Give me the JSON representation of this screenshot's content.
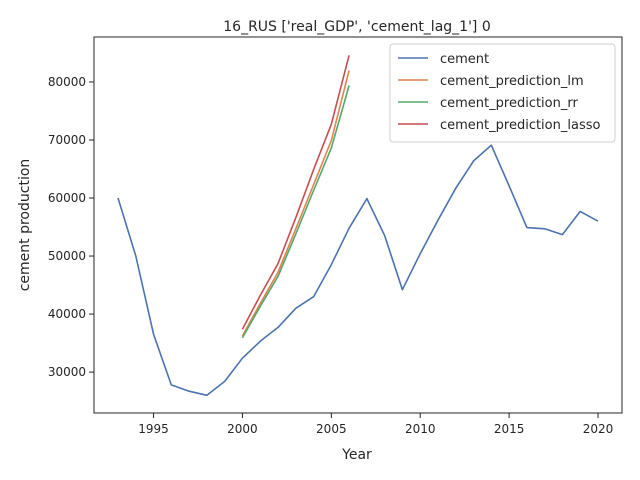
{
  "chart_data": {
    "type": "line",
    "title": "16_RUS ['real_GDP', 'cement_lag_1'] 0",
    "xlabel": "Year",
    "ylabel": "cement production",
    "xlim": [
      1991.65,
      2021.35
    ],
    "ylim": [
      22950,
      87750
    ],
    "xticks": [
      1995,
      2000,
      2005,
      2010,
      2015,
      2020
    ],
    "yticks": [
      30000,
      40000,
      50000,
      60000,
      70000,
      80000
    ],
    "grid": false,
    "legend_position": "top-right",
    "series": [
      {
        "name": "cement",
        "color": "#4c72b0",
        "x": [
          1993,
          1994,
          1995,
          1996,
          1997,
          1998,
          1999,
          2000,
          2001,
          2002,
          2003,
          2004,
          2005,
          2006,
          2007,
          2008,
          2009,
          2010,
          2011,
          2012,
          2013,
          2014,
          2015,
          2016,
          2017,
          2018,
          2019,
          2020
        ],
        "values": [
          60000,
          50000,
          36500,
          27800,
          26700,
          26000,
          28400,
          32400,
          35300,
          37700,
          41000,
          43000,
          48500,
          54800,
          59900,
          53500,
          44200,
          50400,
          56200,
          61700,
          66400,
          69100,
          62100,
          54900,
          54700,
          53700,
          57700,
          56000
        ]
      },
      {
        "name": "cement_prediction_lm",
        "color": "#dd8452",
        "x": [
          2000,
          2001,
          2002,
          2003,
          2004,
          2005,
          2006
        ],
        "values": [
          36200,
          41800,
          47200,
          54700,
          62300,
          69900,
          82000
        ]
      },
      {
        "name": "cement_prediction_rr",
        "color": "#55a868",
        "x": [
          2000,
          2001,
          2002,
          2003,
          2004,
          2005,
          2006
        ],
        "values": [
          35900,
          41300,
          46500,
          53800,
          61300,
          68600,
          79400
        ]
      },
      {
        "name": "cement_prediction_lasso",
        "color": "#c44e52",
        "x": [
          2000,
          2001,
          2002,
          2003,
          2004,
          2005,
          2006
        ],
        "values": [
          37400,
          43200,
          48700,
          56600,
          64900,
          72700,
          84600
        ]
      }
    ]
  }
}
